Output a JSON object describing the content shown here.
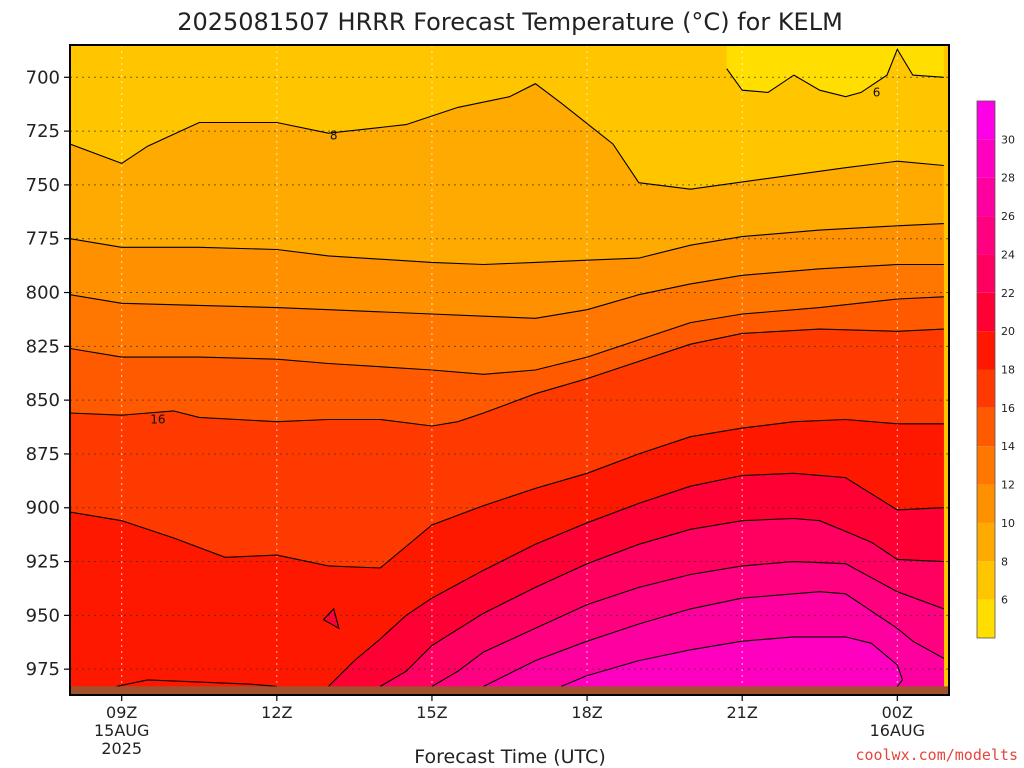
{
  "chart_data": {
    "type": "area",
    "title": "2025081507 HRRR Forecast Temperature (°C) for KELM",
    "xlabel": "Forecast Time (UTC)",
    "ylabel": "",
    "credit": "coolwx.com/modelts",
    "y_scale": "pressure (hPa), increasing downward",
    "ylim": [
      987,
      685
    ],
    "xlim": [
      8.0,
      25.0
    ],
    "x_ticks": [
      {
        "x": 9,
        "label": "09Z",
        "date": "15AUG",
        "year": "2025"
      },
      {
        "x": 12,
        "label": "12Z",
        "date": "",
        "year": ""
      },
      {
        "x": 15,
        "label": "15Z",
        "date": "",
        "year": ""
      },
      {
        "x": 18,
        "label": "18Z",
        "date": "",
        "year": ""
      },
      {
        "x": 21,
        "label": "21Z",
        "date": "",
        "year": ""
      },
      {
        "x": 24,
        "label": "00Z",
        "date": "16AUG",
        "year": ""
      }
    ],
    "y_ticks": [
      "700",
      "725",
      "750",
      "775",
      "800",
      "825",
      "850",
      "875",
      "900",
      "925",
      "950",
      "975"
    ],
    "y_tick_values": [
      700,
      725,
      750,
      775,
      800,
      825,
      850,
      875,
      900,
      925,
      950,
      975
    ],
    "grid": true,
    "colorbar": {
      "labels": [
        "30",
        "28",
        "26",
        "24",
        "22",
        "20",
        "18",
        "16",
        "14",
        "12",
        "10",
        "8",
        "6"
      ],
      "bands": [
        {
          "min": 4,
          "max": 6,
          "color": "#FFDE00"
        },
        {
          "min": 6,
          "max": 8,
          "color": "#FFC600"
        },
        {
          "min": 8,
          "max": 10,
          "color": "#FFAA00"
        },
        {
          "min": 10,
          "max": 12,
          "color": "#FF9000"
        },
        {
          "min": 12,
          "max": 14,
          "color": "#FF7600"
        },
        {
          "min": 14,
          "max": 16,
          "color": "#FF5A00"
        },
        {
          "min": 16,
          "max": 18,
          "color": "#FF3A00"
        },
        {
          "min": 18,
          "max": 20,
          "color": "#FF1800"
        },
        {
          "min": 20,
          "max": 22,
          "color": "#FF0035"
        },
        {
          "min": 22,
          "max": 24,
          "color": "#FF0060"
        },
        {
          "min": 24,
          "max": 26,
          "color": "#FF0080"
        },
        {
          "min": 26,
          "max": 28,
          "color": "#FF00A0"
        },
        {
          "min": 28,
          "max": 30,
          "color": "#FF00C0"
        },
        {
          "min": 30,
          "max": 32,
          "color": "#FF00E6"
        }
      ]
    },
    "contours": [
      {
        "value": 6,
        "label": "6",
        "points": [
          [
            20.7,
            696
          ],
          [
            21.0,
            706
          ],
          [
            21.5,
            707
          ],
          [
            22.0,
            699
          ],
          [
            22.5,
            706
          ],
          [
            23.0,
            709
          ],
          [
            23.3,
            707
          ],
          [
            23.8,
            699
          ],
          [
            24.0,
            687
          ],
          [
            24.3,
            699
          ],
          [
            24.9,
            700
          ]
        ]
      },
      {
        "value": 8,
        "label": "8",
        "points": [
          [
            8.0,
            731
          ],
          [
            9.0,
            740
          ],
          [
            9.5,
            732
          ],
          [
            10.5,
            721
          ],
          [
            12.0,
            721
          ],
          [
            13.0,
            726
          ],
          [
            14.5,
            722
          ],
          [
            15.5,
            714
          ],
          [
            16.5,
            709
          ],
          [
            17.0,
            703
          ],
          [
            17.5,
            712
          ],
          [
            18.5,
            731
          ],
          [
            19.0,
            749
          ],
          [
            20.0,
            752
          ],
          [
            21.5,
            747
          ],
          [
            23.0,
            742
          ],
          [
            24.0,
            739
          ],
          [
            24.9,
            741
          ]
        ]
      },
      {
        "value": 10,
        "label": "",
        "points": [
          [
            8.0,
            775
          ],
          [
            9.0,
            779
          ],
          [
            10.5,
            779
          ],
          [
            12.0,
            780
          ],
          [
            13.0,
            783
          ],
          [
            15.0,
            786
          ],
          [
            16.0,
            787
          ],
          [
            17.0,
            786
          ],
          [
            18.0,
            785
          ],
          [
            19.0,
            784
          ],
          [
            20.0,
            778
          ],
          [
            21.0,
            774
          ],
          [
            22.5,
            771
          ],
          [
            24.0,
            769
          ],
          [
            24.9,
            768
          ]
        ]
      },
      {
        "value": 12,
        "label": "",
        "points": [
          [
            8.0,
            801
          ],
          [
            9.0,
            805
          ],
          [
            10.5,
            806
          ],
          [
            12.0,
            807
          ],
          [
            13.0,
            808
          ],
          [
            15.0,
            810
          ],
          [
            16.0,
            811
          ],
          [
            17.0,
            812
          ],
          [
            18.0,
            808
          ],
          [
            19.0,
            801
          ],
          [
            20.0,
            796
          ],
          [
            21.0,
            792
          ],
          [
            22.5,
            789
          ],
          [
            24.0,
            787
          ],
          [
            24.9,
            787
          ]
        ]
      },
      {
        "value": 14,
        "label": "",
        "points": [
          [
            8.0,
            826
          ],
          [
            9.0,
            830
          ],
          [
            10.5,
            830
          ],
          [
            12.0,
            831
          ],
          [
            13.0,
            833
          ],
          [
            15.0,
            836
          ],
          [
            16.0,
            838
          ],
          [
            17.0,
            836
          ],
          [
            18.0,
            830
          ],
          [
            19.0,
            822
          ],
          [
            20.0,
            814
          ],
          [
            21.0,
            810
          ],
          [
            22.5,
            807
          ],
          [
            24.0,
            803
          ],
          [
            24.9,
            802
          ]
        ]
      },
      {
        "value": 16,
        "label": "16",
        "points": [
          [
            8.0,
            856
          ],
          [
            9.0,
            857
          ],
          [
            10.0,
            855
          ],
          [
            10.5,
            858
          ],
          [
            12.0,
            860
          ],
          [
            13.0,
            859
          ],
          [
            14.0,
            859
          ],
          [
            15.0,
            862
          ],
          [
            15.5,
            860
          ],
          [
            16.0,
            856
          ],
          [
            17.0,
            847
          ],
          [
            18.0,
            840
          ],
          [
            19.0,
            832
          ],
          [
            20.0,
            824
          ],
          [
            21.0,
            819
          ],
          [
            22.5,
            817
          ],
          [
            24.0,
            818
          ],
          [
            24.9,
            817
          ]
        ]
      },
      {
        "value": 18,
        "label": "",
        "points": [
          [
            8.0,
            902
          ],
          [
            9.0,
            906
          ],
          [
            10.0,
            914
          ],
          [
            11.0,
            923
          ],
          [
            12.0,
            922
          ],
          [
            13.0,
            927
          ],
          [
            14.0,
            928
          ],
          [
            14.5,
            918
          ],
          [
            15.0,
            908
          ],
          [
            16.0,
            899
          ],
          [
            17.0,
            891
          ],
          [
            18.0,
            884
          ],
          [
            19.0,
            875
          ],
          [
            20.0,
            867
          ],
          [
            21.0,
            863
          ],
          [
            22.0,
            860
          ],
          [
            23.0,
            859
          ],
          [
            24.0,
            861
          ],
          [
            24.9,
            861
          ]
        ]
      },
      {
        "value": 20,
        "label": "",
        "points": [
          [
            13.0,
            983
          ],
          [
            13.5,
            971
          ],
          [
            14.0,
            961
          ],
          [
            14.5,
            950
          ],
          [
            15.0,
            942
          ],
          [
            16.0,
            929
          ],
          [
            17.0,
            917
          ],
          [
            18.0,
            907
          ],
          [
            19.0,
            898
          ],
          [
            20.0,
            890
          ],
          [
            21.0,
            885
          ],
          [
            22.0,
            884
          ],
          [
            23.0,
            886
          ],
          [
            24.0,
            901
          ],
          [
            24.9,
            900
          ]
        ]
      },
      {
        "value": 20,
        "label": "",
        "points": [
          [
            12.9,
            952
          ],
          [
            13.1,
            947
          ],
          [
            13.2,
            956
          ],
          [
            12.9,
            952
          ]
        ]
      },
      {
        "value": 22,
        "label": "",
        "points": [
          [
            14.0,
            983
          ],
          [
            14.5,
            976
          ],
          [
            15.0,
            964
          ],
          [
            16.0,
            949
          ],
          [
            17.0,
            937
          ],
          [
            18.0,
            926
          ],
          [
            19.0,
            917
          ],
          [
            20.0,
            910
          ],
          [
            21.0,
            906
          ],
          [
            22.0,
            905
          ],
          [
            22.5,
            906
          ],
          [
            23.0,
            911
          ],
          [
            23.5,
            916
          ],
          [
            24.0,
            924
          ],
          [
            24.9,
            925
          ]
        ]
      },
      {
        "value": 24,
        "label": "",
        "points": [
          [
            15.0,
            983
          ],
          [
            15.5,
            976
          ],
          [
            16.0,
            967
          ],
          [
            17.0,
            956
          ],
          [
            18.0,
            945
          ],
          [
            19.0,
            937
          ],
          [
            20.0,
            931
          ],
          [
            21.0,
            927
          ],
          [
            22.0,
            925
          ],
          [
            23.0,
            926
          ],
          [
            24.0,
            939
          ],
          [
            24.9,
            947
          ]
        ]
      },
      {
        "value": 26,
        "label": "",
        "points": [
          [
            16.0,
            983
          ],
          [
            16.5,
            977
          ],
          [
            17.0,
            971
          ],
          [
            18.0,
            962
          ],
          [
            19.0,
            954
          ],
          [
            20.0,
            947
          ],
          [
            21.0,
            942
          ],
          [
            22.0,
            940
          ],
          [
            22.5,
            939
          ],
          [
            23.0,
            940
          ],
          [
            23.5,
            948
          ],
          [
            24.0,
            956
          ],
          [
            24.3,
            962
          ],
          [
            24.9,
            970
          ]
        ]
      },
      {
        "value": 28,
        "label": "",
        "points": [
          [
            17.5,
            983
          ],
          [
            18.0,
            978
          ],
          [
            19.0,
            971
          ],
          [
            20.0,
            966
          ],
          [
            21.0,
            962
          ],
          [
            22.0,
            960
          ],
          [
            23.0,
            960
          ],
          [
            23.5,
            963
          ],
          [
            24.0,
            973
          ],
          [
            24.1,
            980
          ],
          [
            24.0,
            983
          ]
        ]
      },
      {
        "value": 18,
        "label": "",
        "points": [
          [
            8.9,
            983
          ],
          [
            9.5,
            980
          ],
          [
            10.5,
            981
          ],
          [
            11.5,
            982
          ],
          [
            12.0,
            983
          ]
        ]
      }
    ],
    "fill_bands": [
      {
        "color": "#FFC600",
        "lower": [
          [
            8,
            700
          ],
          [
            25,
            700
          ]
        ],
        "upper": [
          [
            8,
            685
          ],
          [
            25,
            685
          ]
        ]
      }
    ],
    "surface": {
      "color": "#A0522D",
      "pressure_top": 983,
      "pressure_bottom": 987
    }
  }
}
